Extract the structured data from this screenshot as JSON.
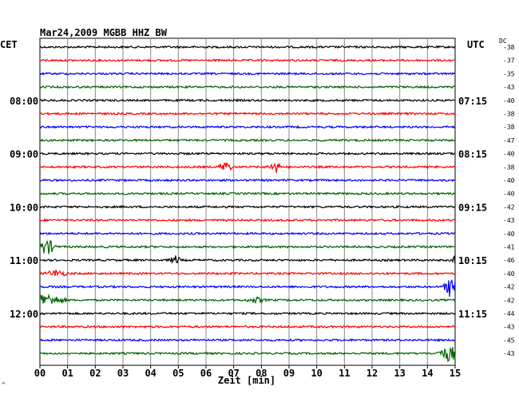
{
  "header": {
    "title": "Mar24,2009   MGBB HHZ BW",
    "left_zone": "CET",
    "right_zone": "UTC",
    "dc_label": "DC"
  },
  "chart_data": {
    "type": "line",
    "xlabel": "Zeit [min]",
    "xlim": [
      0,
      15
    ],
    "x_ticks": [
      "00",
      "01",
      "02",
      "03",
      "04",
      "05",
      "06",
      "07",
      "08",
      "09",
      "10",
      "11",
      "12",
      "13",
      "14",
      "15"
    ],
    "traces_per_hour": 4,
    "minutes_per_trace": 15,
    "series_colors": [
      "#000000",
      "#ff0000",
      "#0000ff",
      "#006400"
    ],
    "left_hour_labels": [
      "08:00",
      "09:00",
      "10:00",
      "11:00",
      "12:00"
    ],
    "right_hour_labels": [
      "07:15",
      "08:15",
      "09:15",
      "10:15",
      "11:15"
    ],
    "dc_values": [
      "-38",
      "-37",
      "-35",
      "-43",
      "-40",
      "-38",
      "-38",
      "-47",
      "-40",
      "-38",
      "-40",
      "-40",
      "-42",
      "-43",
      "-40",
      "-41",
      "-46",
      "-40",
      "-42",
      "-42",
      "-44",
      "-43",
      "-45",
      "-43"
    ],
    "events": [
      {
        "trace": 9,
        "minute": 6.7,
        "amp": 7,
        "dur": 0.3
      },
      {
        "trace": 9,
        "minute": 8.5,
        "amp": 7,
        "dur": 0.3
      },
      {
        "trace": 15,
        "minute": 0.25,
        "amp": 10,
        "dur": 0.4
      },
      {
        "trace": 16,
        "minute": 4.9,
        "amp": 5,
        "dur": 0.25
      },
      {
        "trace": 16,
        "minute": 15.0,
        "amp": 9,
        "dur": 0.1
      },
      {
        "trace": 17,
        "minute": 0.6,
        "amp": 4,
        "dur": 0.5
      },
      {
        "trace": 18,
        "minute": 14.8,
        "amp": 12,
        "dur": 0.25
      },
      {
        "trace": 18,
        "minute": 15.0,
        "amp": 16,
        "dur": 0.1
      },
      {
        "trace": 19,
        "minute": 0.1,
        "amp": 8,
        "dur": 1.0
      },
      {
        "trace": 19,
        "minute": 7.8,
        "amp": 3,
        "dur": 0.4
      },
      {
        "trace": 23,
        "minute": 14.8,
        "amp": 10,
        "dur": 0.5
      }
    ]
  },
  "footer": {
    "corner_mark": "^"
  }
}
